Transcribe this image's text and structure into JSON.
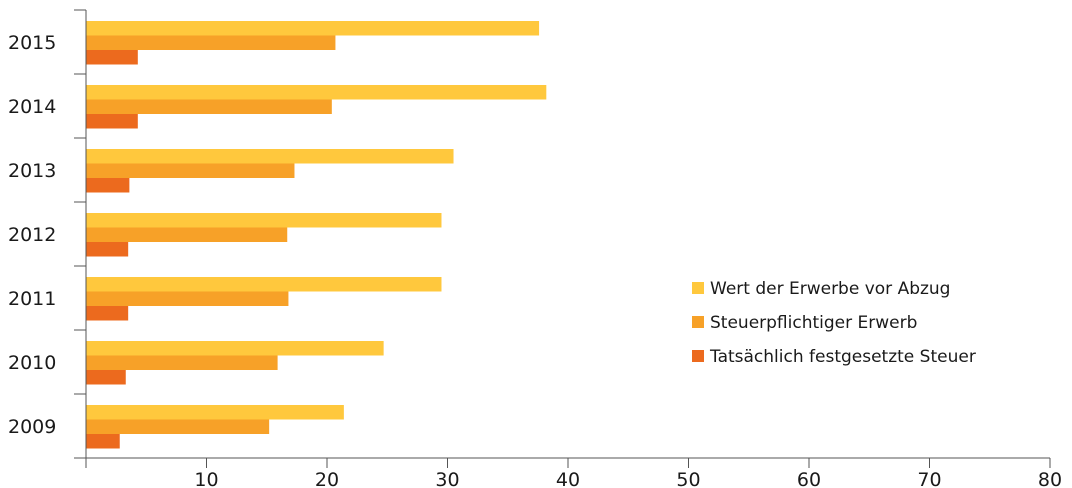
{
  "chart_data": {
    "type": "bar",
    "orientation": "horizontal",
    "title": "",
    "xlabel": "",
    "ylabel": "",
    "categories": [
      "2015",
      "2014",
      "2013",
      "2012",
      "2011",
      "2010",
      "2009"
    ],
    "xlim": [
      0,
      80
    ],
    "xticks": [
      "10",
      "20",
      "30",
      "40",
      "50",
      "60",
      "70",
      "80"
    ],
    "grid": false,
    "legend_position": "right",
    "series": [
      {
        "name": "Wert der Erwerbe vor Abzug",
        "color": "#FFC83D",
        "values": [
          37.6,
          38.2,
          30.5,
          29.5,
          29.5,
          24.7,
          21.4
        ]
      },
      {
        "name": "Steuerpflichtiger Erwerb",
        "color": "#F7A128",
        "values": [
          20.7,
          20.4,
          17.3,
          16.7,
          16.8,
          15.9,
          15.2
        ]
      },
      {
        "name": "Tatsächlich festgesetzte Steuer",
        "color": "#EC6A1E",
        "values": [
          4.3,
          4.3,
          3.6,
          3.5,
          3.5,
          3.3,
          2.8
        ]
      }
    ]
  }
}
